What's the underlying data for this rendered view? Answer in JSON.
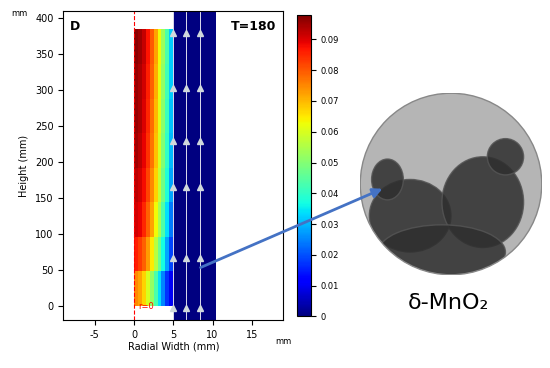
{
  "chart_data": {
    "type": "heatmap",
    "xlabel": "Radial Width (mm)",
    "ylabel": "Height (mm)",
    "annotations": {
      "panel": "D",
      "time": "T=180",
      "axis_marker": "r=0",
      "y_unit": "mm",
      "x_unit": "mm"
    },
    "xlim": [
      -9,
      19
    ],
    "ylim": [
      -20,
      410
    ],
    "xticks": [
      -5,
      0,
      5,
      10,
      15
    ],
    "yticks": [
      0,
      50,
      100,
      150,
      200,
      250,
      300,
      350,
      400
    ],
    "cells": {
      "x_edges": [
        0,
        0.5,
        1,
        1.5,
        2,
        2.5,
        3,
        3.5,
        4,
        4.5,
        5
      ],
      "y_edges": [
        0,
        48,
        96,
        144,
        192,
        240,
        288,
        336,
        385
      ],
      "values": [
        [
          0.075,
          0.072,
          0.067,
          0.06,
          0.052,
          0.043,
          0.034,
          0.025,
          0.017,
          0.01
        ],
        [
          0.086,
          0.083,
          0.079,
          0.073,
          0.065,
          0.056,
          0.047,
          0.037,
          0.028,
          0.019
        ],
        [
          0.091,
          0.089,
          0.085,
          0.079,
          0.072,
          0.063,
          0.054,
          0.044,
          0.034,
          0.024
        ],
        [
          0.093,
          0.091,
          0.088,
          0.082,
          0.075,
          0.067,
          0.058,
          0.048,
          0.038,
          0.028
        ],
        [
          0.095,
          0.093,
          0.089,
          0.084,
          0.077,
          0.069,
          0.06,
          0.05,
          0.04,
          0.03
        ],
        [
          0.096,
          0.094,
          0.09,
          0.085,
          0.078,
          0.07,
          0.061,
          0.051,
          0.041,
          0.031
        ],
        [
          0.096,
          0.094,
          0.091,
          0.086,
          0.079,
          0.071,
          0.062,
          0.052,
          0.042,
          0.032
        ],
        [
          0.097,
          0.095,
          0.092,
          0.087,
          0.08,
          0.072,
          0.063,
          0.053,
          0.043,
          0.032
        ]
      ]
    },
    "flow_cells": {
      "x_edges": [
        5,
        10.5
      ],
      "y_edges": [
        -20,
        410
      ],
      "values": [
        [
          0
        ]
      ]
    },
    "colorbar_range": [
      0,
      0.098
    ],
    "colorbar_ticks": [
      0,
      0.01,
      0.02,
      0.03,
      0.04,
      0.05,
      0.06,
      0.07,
      0.08,
      0.09
    ]
  },
  "image_caption": "δ-MnO₂"
}
